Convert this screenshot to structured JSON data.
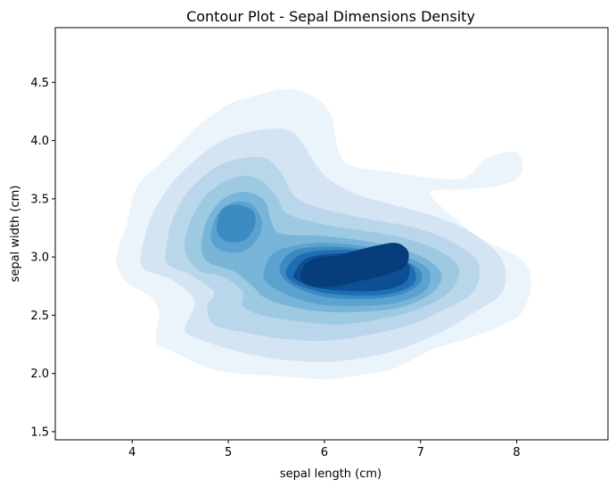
{
  "chart_data": {
    "type": "contour",
    "title": "Contour Plot - Sepal Dimensions Density",
    "xlabel": "sepal length (cm)",
    "ylabel": "sepal width (cm)",
    "xlim": [
      3.2,
      8.95
    ],
    "ylim": [
      1.43,
      4.97
    ],
    "xticks": [
      4,
      5,
      6,
      7,
      8
    ],
    "yticks": [
      1.5,
      2.0,
      2.5,
      3.0,
      3.5,
      4.0,
      4.5
    ],
    "xtick_labels": [
      "4",
      "5",
      "6",
      "7",
      "8"
    ],
    "ytick_labels": [
      "1.5",
      "2.0",
      "2.5",
      "3.0",
      "3.5",
      "4.0",
      "4.5"
    ],
    "filled": true,
    "colormap": "Blues",
    "grid": false,
    "levels": [
      {
        "level": 1,
        "color": "#ebf3fb"
      },
      {
        "level": 2,
        "color": "#d4e4f3"
      },
      {
        "level": 3,
        "color": "#bad6eb"
      },
      {
        "level": 4,
        "color": "#9ecae1"
      },
      {
        "level": 5,
        "color": "#78b5d9"
      },
      {
        "level": 6,
        "color": "#5ba2d0"
      },
      {
        "level": 7,
        "color": "#3c8ac2"
      },
      {
        "level": 8,
        "color": "#1f6eb3"
      },
      {
        "level": 9,
        "color": "#0c4f92"
      },
      {
        "level": 10,
        "color": "#083d7c"
      }
    ],
    "density_peaks": [
      {
        "x": 5.0,
        "y": 3.4,
        "peak_level": 7
      },
      {
        "x": 6.3,
        "y": 2.9,
        "peak_level": 10
      }
    ],
    "regions": [
      {
        "level": 1,
        "points": [
          [
            3.85,
            3.05
          ],
          [
            3.95,
            3.3
          ],
          [
            4.05,
            3.6
          ],
          [
            4.35,
            3.85
          ],
          [
            4.65,
            4.1
          ],
          [
            4.85,
            4.23
          ],
          [
            5.05,
            4.33
          ],
          [
            5.35,
            4.4
          ],
          [
            5.55,
            4.44
          ],
          [
            5.78,
            4.42
          ],
          [
            6.05,
            4.25
          ],
          [
            6.15,
            3.9
          ],
          [
            6.3,
            3.78
          ],
          [
            6.7,
            3.73
          ],
          [
            7.1,
            3.68
          ],
          [
            7.45,
            3.68
          ],
          [
            7.7,
            3.85
          ],
          [
            8.0,
            3.9
          ],
          [
            8.05,
            3.72
          ],
          [
            7.85,
            3.62
          ],
          [
            7.45,
            3.58
          ],
          [
            7.1,
            3.55
          ],
          [
            7.4,
            3.3
          ],
          [
            7.65,
            3.15
          ],
          [
            8.05,
            2.98
          ],
          [
            8.15,
            2.78
          ],
          [
            8.05,
            2.52
          ],
          [
            7.8,
            2.4
          ],
          [
            7.5,
            2.3
          ],
          [
            7.1,
            2.2
          ],
          [
            6.75,
            2.05
          ],
          [
            6.4,
            1.99
          ],
          [
            6.0,
            1.95
          ],
          [
            5.5,
            1.98
          ],
          [
            5.1,
            2.0
          ],
          [
            4.78,
            2.05
          ],
          [
            4.45,
            2.18
          ],
          [
            4.25,
            2.27
          ],
          [
            4.28,
            2.5
          ],
          [
            4.2,
            2.65
          ],
          [
            3.95,
            2.78
          ],
          [
            3.84,
            2.93
          ]
        ]
      },
      {
        "level": 2,
        "points": [
          [
            4.1,
            3.05
          ],
          [
            4.2,
            3.35
          ],
          [
            4.4,
            3.62
          ],
          [
            4.65,
            3.83
          ],
          [
            4.9,
            3.98
          ],
          [
            5.15,
            4.06
          ],
          [
            5.45,
            4.1
          ],
          [
            5.7,
            4.05
          ],
          [
            5.98,
            3.72
          ],
          [
            6.3,
            3.55
          ],
          [
            6.75,
            3.44
          ],
          [
            7.15,
            3.35
          ],
          [
            7.55,
            3.2
          ],
          [
            7.85,
            2.97
          ],
          [
            7.85,
            2.7
          ],
          [
            7.55,
            2.52
          ],
          [
            7.2,
            2.35
          ],
          [
            6.75,
            2.2
          ],
          [
            6.3,
            2.12
          ],
          [
            5.9,
            2.1
          ],
          [
            5.45,
            2.13
          ],
          [
            5.05,
            2.2
          ],
          [
            4.68,
            2.3
          ],
          [
            4.55,
            2.38
          ],
          [
            4.65,
            2.62
          ],
          [
            4.42,
            2.8
          ],
          [
            4.12,
            2.9
          ]
        ]
      },
      {
        "level": 3,
        "points": [
          [
            4.35,
            3.05
          ],
          [
            4.42,
            3.32
          ],
          [
            4.58,
            3.56
          ],
          [
            4.85,
            3.76
          ],
          [
            5.1,
            3.84
          ],
          [
            5.38,
            3.85
          ],
          [
            5.55,
            3.72
          ],
          [
            5.72,
            3.5
          ],
          [
            6.05,
            3.4
          ],
          [
            6.5,
            3.32
          ],
          [
            6.95,
            3.25
          ],
          [
            7.35,
            3.12
          ],
          [
            7.6,
            2.95
          ],
          [
            7.55,
            2.7
          ],
          [
            7.25,
            2.55
          ],
          [
            6.9,
            2.42
          ],
          [
            6.45,
            2.33
          ],
          [
            6.0,
            2.28
          ],
          [
            5.55,
            2.3
          ],
          [
            5.18,
            2.35
          ],
          [
            4.85,
            2.42
          ],
          [
            4.78,
            2.58
          ],
          [
            4.85,
            2.7
          ],
          [
            4.6,
            2.85
          ],
          [
            4.38,
            2.93
          ]
        ]
      },
      {
        "level": 4,
        "points": [
          [
            4.55,
            3.05
          ],
          [
            4.6,
            3.3
          ],
          [
            4.78,
            3.54
          ],
          [
            5.05,
            3.68
          ],
          [
            5.3,
            3.68
          ],
          [
            5.5,
            3.52
          ],
          [
            5.62,
            3.37
          ],
          [
            6.0,
            3.28
          ],
          [
            6.45,
            3.22
          ],
          [
            6.85,
            3.16
          ],
          [
            7.2,
            3.05
          ],
          [
            7.4,
            2.9
          ],
          [
            7.3,
            2.7
          ],
          [
            7.0,
            2.56
          ],
          [
            6.6,
            2.47
          ],
          [
            6.15,
            2.42
          ],
          [
            5.72,
            2.45
          ],
          [
            5.35,
            2.5
          ],
          [
            5.15,
            2.58
          ],
          [
            5.15,
            2.7
          ],
          [
            4.95,
            2.83
          ],
          [
            4.7,
            2.88
          ]
        ]
      },
      {
        "level": 5,
        "points": [
          [
            4.72,
            3.08
          ],
          [
            4.78,
            3.32
          ],
          [
            4.95,
            3.5
          ],
          [
            5.18,
            3.56
          ],
          [
            5.38,
            3.48
          ],
          [
            5.45,
            3.3
          ],
          [
            5.55,
            3.2
          ],
          [
            5.98,
            3.18
          ],
          [
            6.4,
            3.14
          ],
          [
            6.8,
            3.07
          ],
          [
            7.1,
            2.96
          ],
          [
            7.22,
            2.83
          ],
          [
            7.1,
            2.68
          ],
          [
            6.8,
            2.57
          ],
          [
            6.4,
            2.53
          ],
          [
            5.98,
            2.53
          ],
          [
            5.62,
            2.58
          ],
          [
            5.38,
            2.65
          ],
          [
            5.25,
            2.75
          ],
          [
            5.05,
            2.88
          ],
          [
            4.8,
            2.95
          ]
        ]
      },
      {
        "level": 6,
        "points": [
          [
            4.82,
            3.15
          ],
          [
            4.88,
            3.36
          ],
          [
            5.05,
            3.47
          ],
          [
            5.25,
            3.45
          ],
          [
            5.35,
            3.3
          ],
          [
            5.3,
            3.15
          ],
          [
            5.15,
            3.05
          ],
          [
            4.95,
            3.05
          ]
        ]
      },
      {
        "level": 6,
        "points": [
          [
            5.38,
            2.9
          ],
          [
            5.5,
            3.05
          ],
          [
            5.9,
            3.12
          ],
          [
            6.35,
            3.1
          ],
          [
            6.75,
            3.03
          ],
          [
            7.05,
            2.92
          ],
          [
            7.1,
            2.8
          ],
          [
            7.0,
            2.68
          ],
          [
            6.7,
            2.6
          ],
          [
            6.3,
            2.58
          ],
          [
            5.9,
            2.6
          ],
          [
            5.55,
            2.7
          ],
          [
            5.38,
            2.8
          ]
        ]
      },
      {
        "level": 7,
        "points": [
          [
            4.88,
            3.22
          ],
          [
            4.93,
            3.4
          ],
          [
            5.08,
            3.45
          ],
          [
            5.25,
            3.4
          ],
          [
            5.28,
            3.28
          ],
          [
            5.18,
            3.15
          ],
          [
            5.0,
            3.13
          ]
        ]
      },
      {
        "level": 7,
        "points": [
          [
            5.55,
            2.95
          ],
          [
            5.7,
            3.06
          ],
          [
            6.05,
            3.09
          ],
          [
            6.45,
            3.06
          ],
          [
            6.8,
            2.98
          ],
          [
            7.0,
            2.88
          ],
          [
            6.98,
            2.76
          ],
          [
            6.75,
            2.67
          ],
          [
            6.38,
            2.64
          ],
          [
            6.0,
            2.66
          ],
          [
            5.68,
            2.75
          ],
          [
            5.55,
            2.85
          ]
        ]
      },
      {
        "level": 8,
        "points": [
          [
            5.6,
            2.88
          ],
          [
            5.75,
            3.02
          ],
          [
            6.1,
            3.06
          ],
          [
            6.5,
            3.04
          ],
          [
            6.85,
            2.96
          ],
          [
            6.95,
            2.85
          ],
          [
            6.9,
            2.75
          ],
          [
            6.65,
            2.68
          ],
          [
            6.3,
            2.67
          ],
          [
            5.95,
            2.7
          ],
          [
            5.68,
            2.78
          ]
        ]
      },
      {
        "level": 9,
        "points": [
          [
            5.68,
            2.85
          ],
          [
            5.82,
            2.99
          ],
          [
            6.15,
            3.03
          ],
          [
            6.55,
            3.02
          ],
          [
            6.85,
            2.95
          ],
          [
            6.88,
            2.85
          ],
          [
            6.8,
            2.76
          ],
          [
            6.55,
            2.71
          ],
          [
            6.2,
            2.71
          ],
          [
            5.9,
            2.74
          ],
          [
            5.72,
            2.8
          ]
        ]
      },
      {
        "level": 10,
        "points": [
          [
            5.75,
            2.85
          ],
          [
            5.85,
            2.97
          ],
          [
            6.15,
            3.02
          ],
          [
            6.55,
            3.1
          ],
          [
            6.75,
            3.12
          ],
          [
            6.87,
            3.05
          ],
          [
            6.85,
            2.93
          ],
          [
            6.7,
            2.86
          ],
          [
            6.4,
            2.8
          ],
          [
            6.05,
            2.74
          ],
          [
            5.82,
            2.76
          ]
        ]
      }
    ]
  }
}
